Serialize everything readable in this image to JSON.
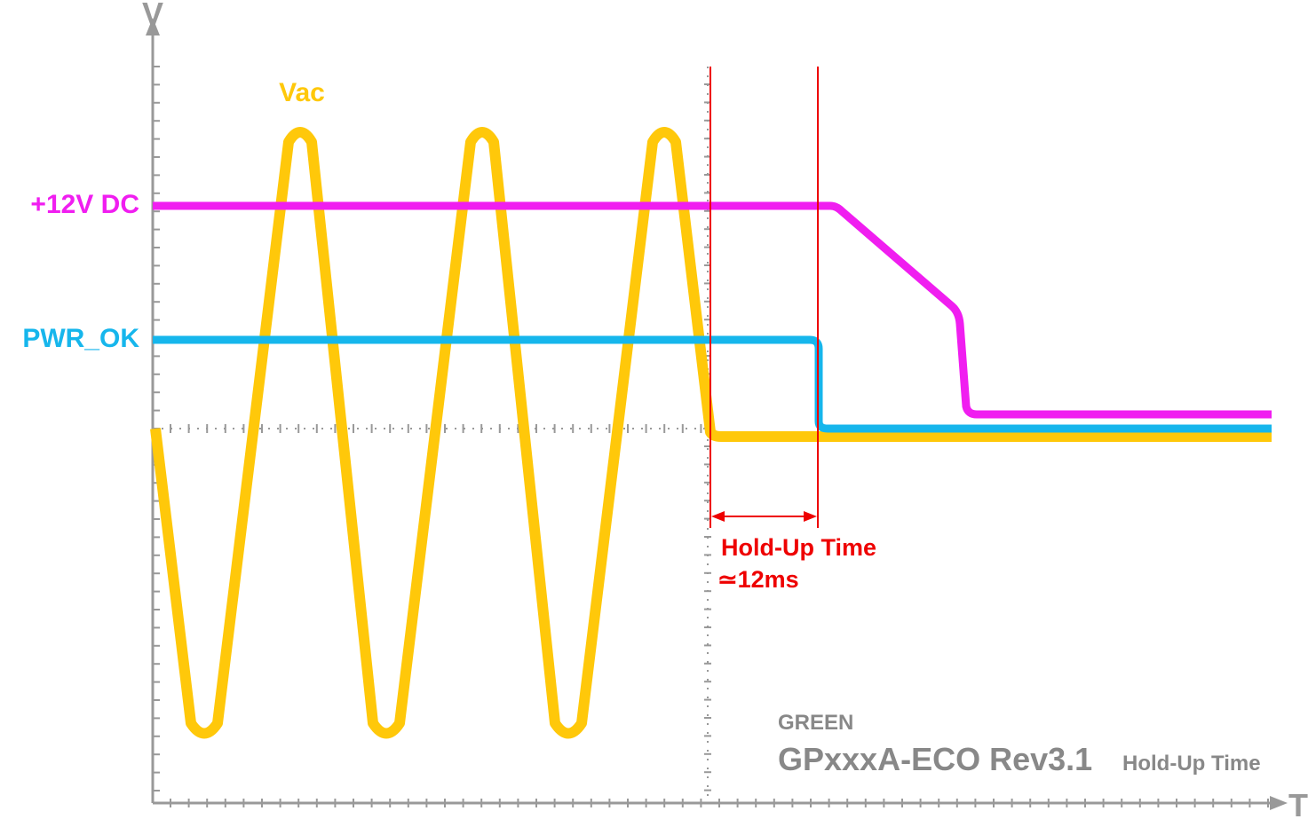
{
  "axis": {
    "y_label": "V",
    "x_label": "T"
  },
  "signals": {
    "vac": "Vac",
    "dc": "+12V DC",
    "pwr_ok": "PWR_OK"
  },
  "hold_up": {
    "label": "Hold-Up Time",
    "value": "≃12ms"
  },
  "footer": {
    "brand": "GREEN",
    "model": "GPxxxA-ECO Rev3.1",
    "caption": "Hold-Up Time"
  }
}
